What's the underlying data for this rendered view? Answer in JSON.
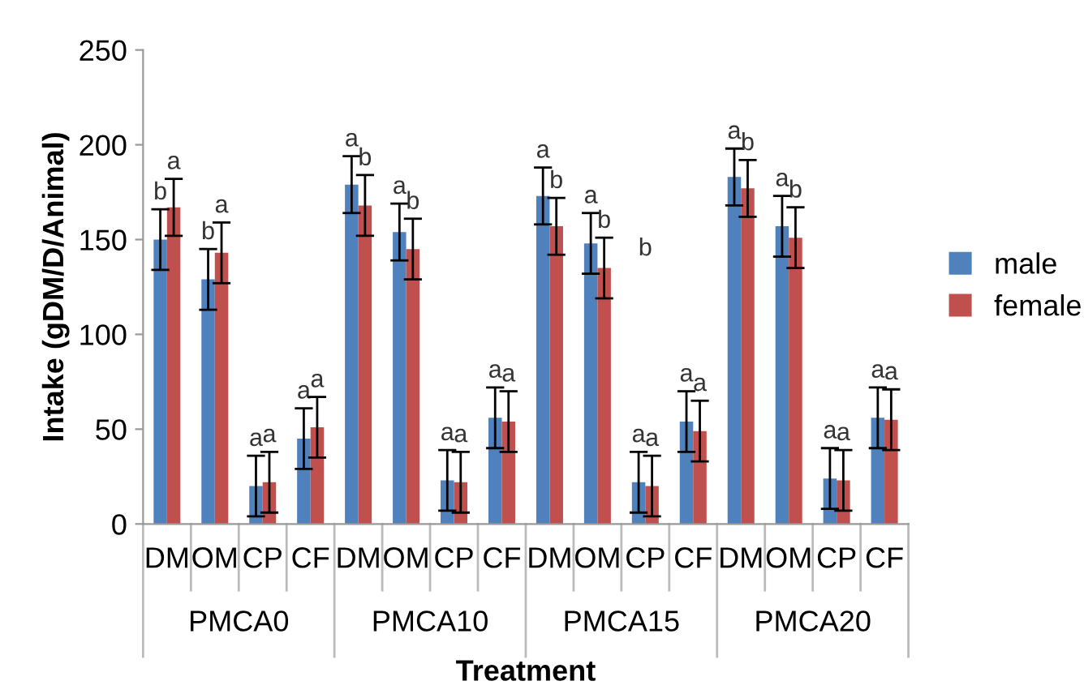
{
  "chart_data": {
    "type": "bar",
    "xlabel": "Treatment",
    "ylabel": "Intake (gDM/D/Animal)",
    "categories": [
      "DM",
      "OM",
      "CP",
      "CF",
      "DM",
      "OM",
      "CP",
      "CF",
      "DM",
      "OM",
      "CP",
      "CF",
      "DM",
      "OM",
      "CP",
      "CF"
    ],
    "series": [
      {
        "name": "male",
        "color": "#4f81bd",
        "values": [
          150,
          129,
          20,
          45,
          179,
          154,
          23,
          56,
          173,
          148,
          22,
          54,
          183,
          157,
          24,
          56
        ],
        "errors": [
          16,
          16,
          16,
          16,
          15,
          15,
          16,
          16,
          15,
          16,
          16,
          16,
          15,
          16,
          16,
          16
        ],
        "value_labels": [
          "b",
          "b",
          "a",
          "a",
          "a",
          "a",
          "a",
          "a",
          "a",
          "a",
          "a",
          "a",
          "a",
          "a",
          "a",
          "a"
        ]
      },
      {
        "name": "female",
        "color": "#c0504d",
        "values": [
          167,
          143,
          22,
          51,
          168,
          145,
          22,
          54,
          157,
          135,
          20,
          49,
          177,
          151,
          23,
          55
        ],
        "errors": [
          15,
          16,
          16,
          16,
          16,
          16,
          16,
          16,
          15,
          16,
          16,
          16,
          15,
          16,
          16,
          16
        ],
        "value_labels": [
          "a",
          "a",
          "a",
          "a",
          "b",
          "b",
          "a",
          "a",
          "b",
          "b",
          "a",
          "a",
          "b",
          "b",
          "a",
          "a"
        ]
      }
    ],
    "annotations": [
      "PMCA0",
      "PMCA10",
      "PMCA15",
      "PMCA20",
      "b"
    ],
    "ylim": [
      0,
      250
    ],
    "yticks": [
      0,
      50,
      100,
      150,
      200,
      250
    ],
    "grid": false,
    "legend": "right"
  }
}
